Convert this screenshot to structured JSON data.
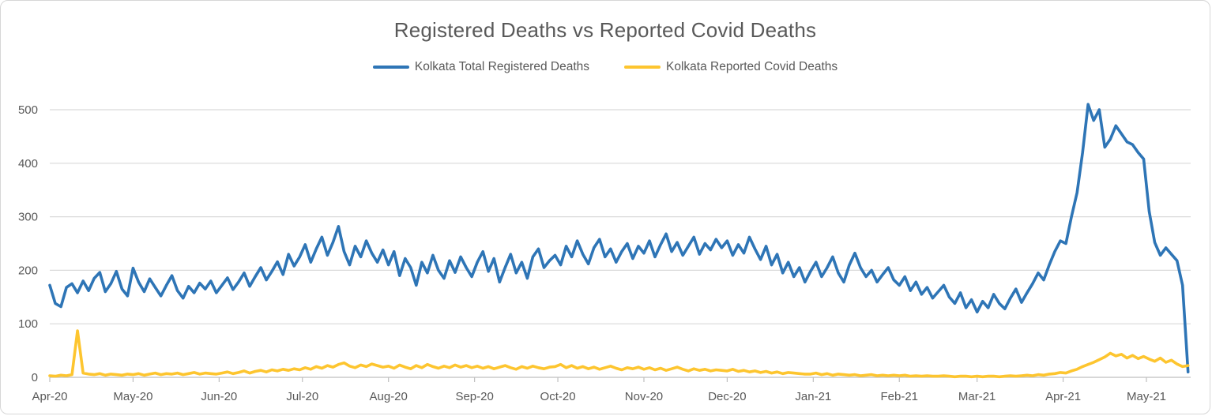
{
  "title": "Registered Deaths vs Reported Covid Deaths",
  "legend": {
    "items": [
      {
        "label": "Kolkata Total Registered Deaths",
        "color": "#2E75B6"
      },
      {
        "label": "Kolkata Reported Covid Deaths",
        "color": "#FDC52F"
      }
    ]
  },
  "colors": {
    "grid": "#D9D9D9",
    "axis": "#BFBFBF",
    "tick": "#BFBFBF",
    "text": "#595959",
    "background": "#FFFFFF"
  },
  "chart_data": {
    "type": "line",
    "title": "Registered Deaths vs Reported Covid Deaths",
    "xlabel": "",
    "ylabel": "",
    "grid": true,
    "legend_position": "top",
    "y_ticks": [
      0,
      100,
      200,
      300,
      400,
      500
    ],
    "ylim": [
      0,
      540
    ],
    "x_tick_labels": [
      "Apr-20",
      "May-20",
      "Jun-20",
      "Jul-20",
      "Aug-20",
      "Sep-20",
      "Oct-20",
      "Nov-20",
      "Dec-20",
      "Jan-21",
      "Feb-21",
      "Mar-21",
      "Apr-21",
      "May-21"
    ],
    "x_tick_days": [
      0,
      30,
      61,
      91,
      122,
      153,
      183,
      214,
      244,
      275,
      306,
      334,
      365,
      395
    ],
    "x_total_days": 410,
    "x_day_step_between_points": 2,
    "series": [
      {
        "name": "Kolkata Total Registered Deaths",
        "color": "#2E75B6",
        "values": [
          172,
          138,
          132,
          168,
          175,
          158,
          180,
          162,
          185,
          196,
          160,
          175,
          198,
          165,
          152,
          204,
          178,
          160,
          184,
          168,
          152,
          172,
          190,
          162,
          148,
          170,
          158,
          176,
          165,
          180,
          158,
          172,
          186,
          164,
          178,
          195,
          170,
          188,
          205,
          182,
          198,
          216,
          192,
          230,
          208,
          225,
          248,
          215,
          240,
          262,
          228,
          252,
          282,
          235,
          210,
          245,
          225,
          255,
          232,
          215,
          238,
          210,
          235,
          190,
          222,
          205,
          172,
          215,
          195,
          228,
          200,
          185,
          218,
          196,
          225,
          205,
          188,
          215,
          235,
          198,
          222,
          178,
          205,
          230,
          195,
          215,
          185,
          225,
          240,
          205,
          218,
          228,
          210,
          245,
          225,
          255,
          230,
          212,
          242,
          258,
          225,
          240,
          215,
          235,
          250,
          222,
          245,
          232,
          255,
          225,
          248,
          268,
          235,
          252,
          228,
          245,
          262,
          230,
          250,
          238,
          258,
          242,
          255,
          228,
          248,
          232,
          262,
          240,
          220,
          245,
          210,
          230,
          195,
          215,
          188,
          205,
          178,
          198,
          215,
          188,
          205,
          225,
          195,
          178,
          210,
          232,
          205,
          188,
          200,
          178,
          192,
          205,
          182,
          172,
          188,
          162,
          178,
          155,
          168,
          148,
          160,
          172,
          150,
          138,
          158,
          130,
          145,
          122,
          142,
          130,
          155,
          138,
          128,
          148,
          165,
          140,
          158,
          175,
          195,
          182,
          210,
          235,
          255,
          250,
          300,
          345,
          420,
          510,
          480,
          500,
          430,
          445,
          470,
          455,
          440,
          435,
          420,
          408,
          310,
          252,
          228,
          242,
          230,
          218,
          172,
          10
        ]
      },
      {
        "name": "Kolkata Reported Covid Deaths",
        "color": "#FDC52F",
        "values": [
          3,
          2,
          4,
          3,
          5,
          87,
          8,
          6,
          5,
          7,
          4,
          6,
          5,
          4,
          6,
          5,
          7,
          4,
          6,
          8,
          5,
          7,
          6,
          8,
          5,
          7,
          9,
          6,
          8,
          7,
          6,
          8,
          10,
          7,
          9,
          12,
          8,
          11,
          13,
          10,
          14,
          12,
          15,
          13,
          16,
          14,
          18,
          15,
          20,
          17,
          22,
          19,
          24,
          27,
          21,
          18,
          23,
          20,
          25,
          22,
          19,
          21,
          17,
          23,
          19,
          16,
          22,
          18,
          24,
          20,
          17,
          21,
          18,
          23,
          19,
          22,
          18,
          21,
          17,
          20,
          16,
          19,
          22,
          18,
          15,
          20,
          17,
          21,
          18,
          16,
          19,
          20,
          24,
          18,
          22,
          17,
          20,
          16,
          19,
          15,
          18,
          21,
          17,
          14,
          18,
          16,
          19,
          15,
          18,
          14,
          17,
          13,
          16,
          19,
          15,
          12,
          16,
          13,
          15,
          12,
          14,
          13,
          12,
          15,
          11,
          13,
          10,
          12,
          9,
          11,
          8,
          10,
          7,
          9,
          8,
          7,
          6,
          6,
          8,
          5,
          7,
          4,
          6,
          5,
          4,
          5,
          3,
          4,
          5,
          3,
          4,
          3,
          4,
          3,
          4,
          2,
          3,
          2,
          3,
          2,
          2,
          3,
          2,
          1,
          2,
          2,
          1,
          2,
          1,
          2,
          2,
          1,
          2,
          3,
          2,
          3,
          4,
          3,
          5,
          4,
          6,
          7,
          9,
          8,
          12,
          15,
          20,
          24,
          28,
          33,
          38,
          45,
          40,
          43,
          36,
          41,
          35,
          39,
          34,
          30,
          36,
          28,
          32,
          25,
          20,
          22
        ]
      }
    ]
  }
}
